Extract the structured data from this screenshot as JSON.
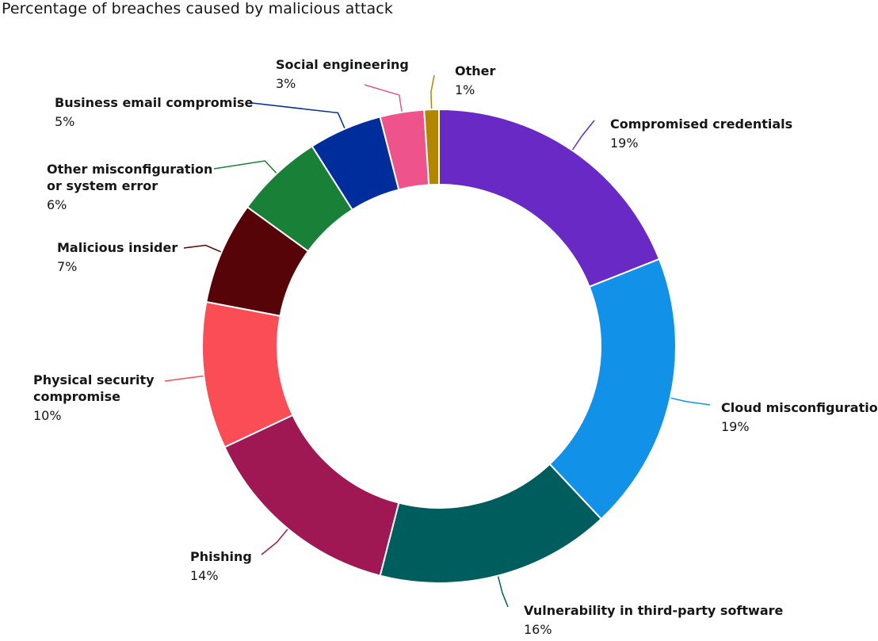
{
  "chart_data": {
    "type": "pie",
    "variant": "donut",
    "title": "Percentage of breaches caused by malicious attack",
    "unit": "%",
    "slices": [
      {
        "label": "Compromised credentials",
        "value": 19,
        "display": "19%",
        "color": "#6929c4"
      },
      {
        "label": "Cloud misconfiguration",
        "value": 19,
        "display": "19%",
        "color": "#1192e8"
      },
      {
        "label": "Vulnerability in third-party software",
        "value": 16,
        "display": "16%",
        "color": "#005d5d"
      },
      {
        "label": "Phishing",
        "value": 14,
        "display": "14%",
        "color": "#9f1853"
      },
      {
        "label": "Physical security compromise",
        "value": 10,
        "display": "10%",
        "color": "#fa4d56"
      },
      {
        "label": "Malicious insider",
        "value": 7,
        "display": "7%",
        "color": "#570408"
      },
      {
        "label": "Other misconfiguration or system error",
        "value": 6,
        "display": "6%",
        "color": "#198038"
      },
      {
        "label": "Business email compromise",
        "value": 5,
        "display": "5%",
        "color": "#002d9c"
      },
      {
        "label": "Social engineering",
        "value": 3,
        "display": "3%",
        "color": "#ee538b"
      },
      {
        "label": "Other",
        "value": 1,
        "display": "1%",
        "color": "#b28600"
      }
    ]
  }
}
